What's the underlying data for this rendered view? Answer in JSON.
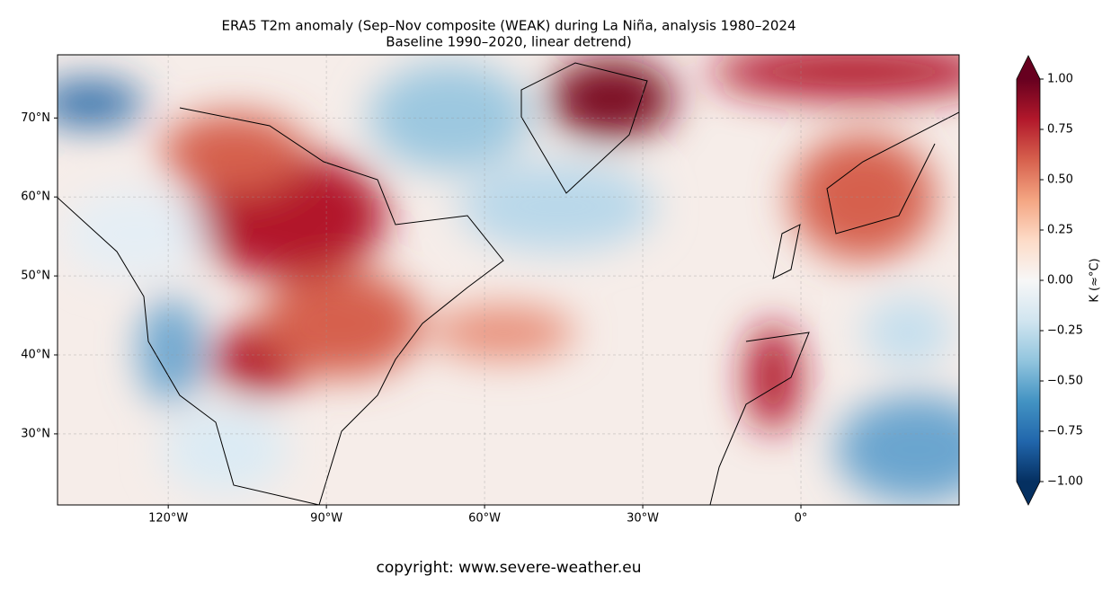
{
  "title": [
    "ERA5 T2m anomaly (Sep–Nov composite (WEAK) during La Niña, analysis 1980–2024",
    "Baseline 1990–2020, linear detrend)"
  ],
  "map": {
    "xlim": [
      -141,
      30
    ],
    "ylim": [
      21,
      78
    ],
    "xticks": [
      {
        "value": -120,
        "label": "120°W"
      },
      {
        "value": -90,
        "label": "90°W"
      },
      {
        "value": -60,
        "label": "60°W"
      },
      {
        "value": -30,
        "label": "30°W"
      },
      {
        "value": 0,
        "label": "0°"
      }
    ],
    "yticks": [
      {
        "value": 30,
        "label": "30°N"
      },
      {
        "value": 40,
        "label": "40°N"
      },
      {
        "value": 50,
        "label": "50°N"
      },
      {
        "value": 60,
        "label": "60°N"
      },
      {
        "value": 70,
        "label": "70°N"
      }
    ],
    "grid": true
  },
  "colorbar": {
    "label": "K (≈°C)",
    "lim": [
      -1,
      1
    ],
    "ticks": [
      {
        "value": -1,
        "label": "−1.00"
      },
      {
        "value": -0.75,
        "label": "−0.75"
      },
      {
        "value": -0.5,
        "label": "−0.50"
      },
      {
        "value": -0.25,
        "label": "−0.25"
      },
      {
        "value": 0,
        "label": "0.00"
      },
      {
        "value": 0.25,
        "label": "0.25"
      },
      {
        "value": 0.5,
        "label": "0.50"
      },
      {
        "value": 0.75,
        "label": "0.75"
      },
      {
        "value": 1,
        "label": "1.00"
      }
    ],
    "colors": [
      "#053061",
      "#2166ac",
      "#4393c3",
      "#92c5de",
      "#d1e5f0",
      "#f7f7f7",
      "#fddbc7",
      "#f4a582",
      "#d6604d",
      "#b2182b",
      "#67001f"
    ]
  },
  "copyright": "copyright: www.severe-weather.eu"
}
